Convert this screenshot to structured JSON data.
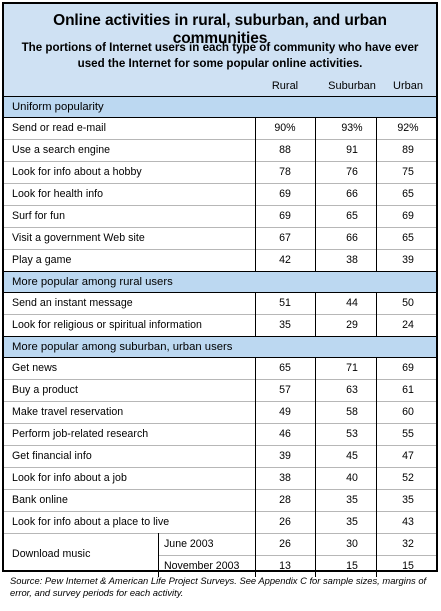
{
  "title": "Online activities in rural, suburban, and urban communities",
  "subtitle": "The portions of Internet users in each type of community who have ever used the Internet for some popular online activities.",
  "columns": [
    "Rural",
    "Suburban",
    "Urban"
  ],
  "sections": [
    {
      "heading": "Uniform popularity",
      "rows": [
        {
          "label": "Send or read e-mail",
          "values": [
            "90%",
            "93%",
            "92%"
          ]
        },
        {
          "label": "Use a search engine",
          "values": [
            "88",
            "91",
            "89"
          ]
        },
        {
          "label": "Look for info about a hobby",
          "values": [
            "78",
            "76",
            "75"
          ]
        },
        {
          "label": "Look for health info",
          "values": [
            "69",
            "66",
            "65"
          ]
        },
        {
          "label": "Surf for fun",
          "values": [
            "69",
            "65",
            "69"
          ]
        },
        {
          "label": "Visit a government Web site",
          "values": [
            "67",
            "66",
            "65"
          ]
        },
        {
          "label": "Play a game",
          "values": [
            "42",
            "38",
            "39"
          ]
        }
      ]
    },
    {
      "heading": "More popular among rural users",
      "rows": [
        {
          "label": "Send an instant message",
          "values": [
            "51",
            "44",
            "50"
          ]
        },
        {
          "label": "Look for religious or spiritual information",
          "values": [
            "35",
            "29",
            "24"
          ]
        }
      ]
    },
    {
      "heading": "More popular among suburban, urban users",
      "rows": [
        {
          "label": "Get news",
          "values": [
            "65",
            "71",
            "69"
          ]
        },
        {
          "label": "Buy a product",
          "values": [
            "57",
            "63",
            "61"
          ]
        },
        {
          "label": "Make travel reservation",
          "values": [
            "49",
            "58",
            "60"
          ]
        },
        {
          "label": "Perform job-related research",
          "values": [
            "46",
            "53",
            "55"
          ]
        },
        {
          "label": "Get financial info",
          "values": [
            "39",
            "45",
            "47"
          ]
        },
        {
          "label": "Look for info about a job",
          "values": [
            "38",
            "40",
            "52"
          ]
        },
        {
          "label": "Bank online",
          "values": [
            "28",
            "35",
            "35"
          ]
        },
        {
          "label": "Look for info about a place to live",
          "values": [
            "26",
            "35",
            "43"
          ]
        }
      ]
    }
  ],
  "download": {
    "label": "Download music",
    "sub": [
      {
        "label": "June 2003",
        "values": [
          "26",
          "30",
          "32"
        ]
      },
      {
        "label": "November 2003",
        "values": [
          "13",
          "15",
          "15"
        ]
      }
    ]
  },
  "source": "Source: Pew Internet & American Life Project Surveys. See Appendix C for sample sizes, margins of error, and survey periods for each activity.",
  "colors": {
    "title_band": "#cfe1f3",
    "section_band": "#bcd8f1",
    "rule": "#b7b7b7"
  }
}
